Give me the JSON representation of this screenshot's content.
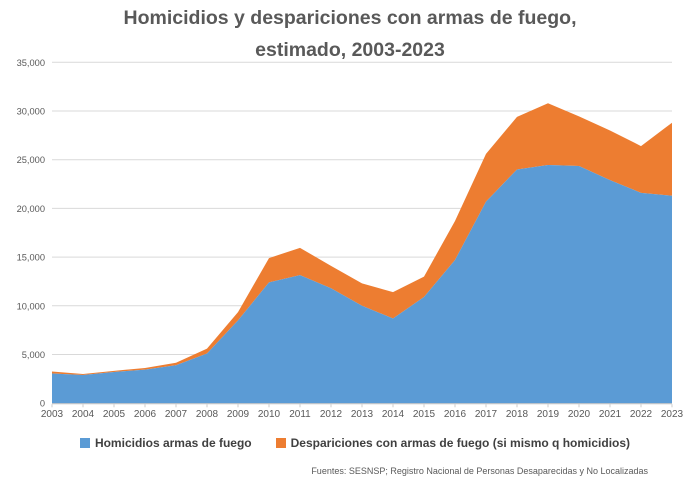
{
  "title": {
    "line1": "Homicidios y despariciones con armas de fuego,",
    "line2": "estimado, 2003-2023"
  },
  "chart_data": {
    "type": "area",
    "stacked": true,
    "categories": [
      2003,
      2004,
      2005,
      2006,
      2007,
      2008,
      2009,
      2010,
      2011,
      2012,
      2013,
      2014,
      2015,
      2016,
      2017,
      2018,
      2019,
      2020,
      2021,
      2022,
      2023
    ],
    "series": [
      {
        "name": "Homicidios armas de fuego",
        "color": "#5B9BD5",
        "values": [
          3050,
          2900,
          3200,
          3450,
          3900,
          5100,
          8500,
          12400,
          13150,
          11800,
          10000,
          8700,
          10900,
          14700,
          20700,
          24000,
          24450,
          24350,
          22900,
          21600,
          21300
        ]
      },
      {
        "name": "Despariciones con armas de fuego (si mismo q homicidios)",
        "color": "#ED7D31",
        "values": [
          200,
          100,
          120,
          170,
          250,
          500,
          850,
          2500,
          2800,
          2300,
          2300,
          2700,
          2100,
          4000,
          4900,
          5400,
          6350,
          5100,
          5100,
          4800,
          7500
        ]
      }
    ],
    "stacked_totals": [
      3250,
      3000,
      3320,
      3620,
      4150,
      5600,
      9350,
      14900,
      15950,
      14100,
      12300,
      11400,
      13000,
      18700,
      25600,
      29400,
      30800,
      29450,
      28000,
      26400,
      28800
    ],
    "title": "Homicidios y despariciones con armas de fuego, estimado, 2003-2023",
    "xlabel": "",
    "ylabel": "",
    "ylim": [
      0,
      35000
    ],
    "ytick_step": 5000,
    "grid": "horizontal",
    "legend_position": "bottom"
  },
  "footer": {
    "source": "Fuentes: SESNSP; Registro Nacional de Personas Desaparecidas y No Localizadas"
  },
  "style": {
    "gridline_color": "#D9D9D9",
    "axis_color": "#BFBFBF",
    "tick_color": "#CCCCCC",
    "tick_label_color": "#595959",
    "title_color": "#595959",
    "legend_text_color": "#404040"
  }
}
